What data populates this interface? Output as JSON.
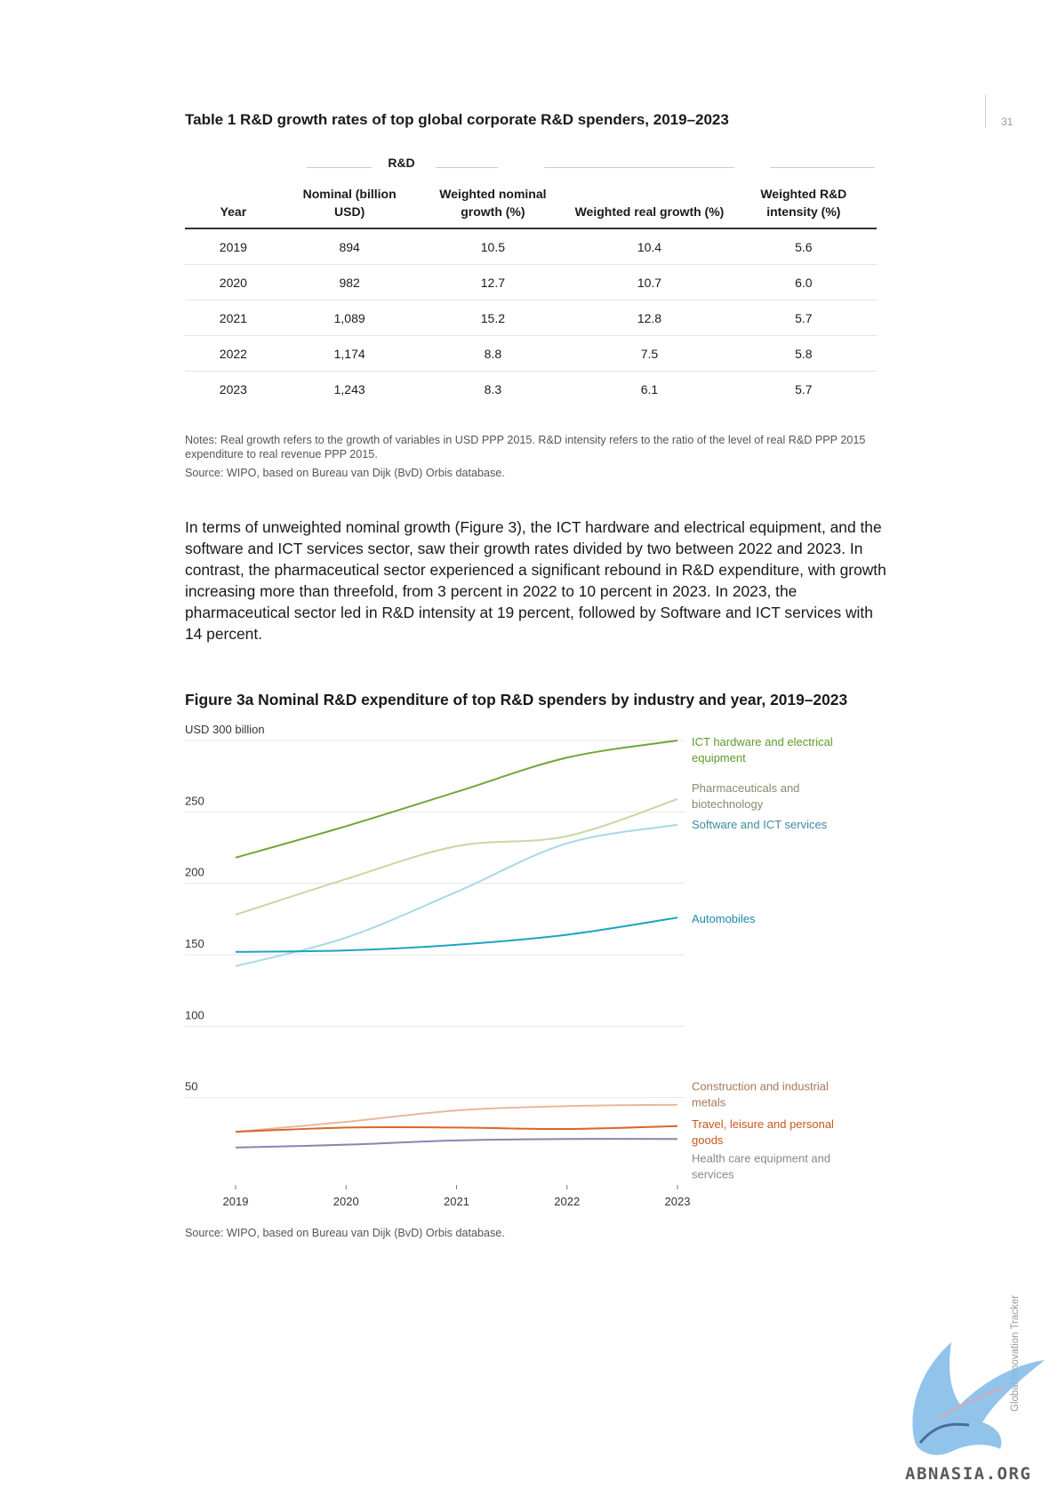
{
  "page": {
    "number": "31",
    "side_label": "Global Innovation Tracker"
  },
  "table": {
    "title": "Table 1 R&D growth rates of top global corporate R&D spenders, 2019–2023",
    "group_header": "R&D",
    "columns": [
      "Year",
      "Nominal (billion USD)",
      "Weighted nominal growth (%)",
      "Weighted real growth (%)",
      "Weighted R&D intensity (%)"
    ],
    "rows": [
      [
        "2019",
        "894",
        "10.5",
        "10.4",
        "5.6"
      ],
      [
        "2020",
        "982",
        "12.7",
        "10.7",
        "6.0"
      ],
      [
        "2021",
        "1,089",
        "15.2",
        "12.8",
        "5.7"
      ],
      [
        "2022",
        "1,174",
        "8.8",
        "7.5",
        "5.8"
      ],
      [
        "2023",
        "1,243",
        "8.3",
        "6.1",
        "5.7"
      ]
    ],
    "notes": "Notes: Real growth refers to the growth of variables in USD PPP 2015. R&D intensity refers to the ratio of the level of real R&D PPP 2015 expenditure to real revenue PPP 2015.",
    "source": "Source: WIPO, based on Bureau van Dijk (BvD) Orbis database."
  },
  "body_text": "In terms of unweighted nominal growth (Figure 3), the ICT hardware and electrical equipment, and the software and ICT services sector, saw their growth rates divided by two between 2022 and 2023. In contrast, the pharmaceutical sector experienced a significant rebound in R&D expenditure, with growth increasing more than threefold, from 3 percent in 2022 to 10 percent in 2023. In 2023, the pharmaceutical sector led in R&D intensity at 19 percent, followed by Software and ICT services with 14 percent.",
  "figure": {
    "title": "Figure 3a Nominal R&D expenditure  of top R&D spenders by industry and year, 2019–2023",
    "source": "Source: WIPO, based on Bureau van Dijk (BvD) Orbis database."
  },
  "chart_data": {
    "type": "line",
    "title": "Figure 3a Nominal R&D expenditure  of top R&D spenders by industry and year, 2019–2023",
    "xlabel": "",
    "ylabel": "USD 300 billion",
    "x": [
      "2019",
      "2020",
      "2021",
      "2022",
      "2023"
    ],
    "ylim": [
      0,
      300
    ],
    "yticks": [
      50,
      100,
      150,
      200,
      250
    ],
    "ytick_labels": [
      "50",
      "100",
      "150",
      "200",
      "250"
    ],
    "grid": true,
    "legend": "direct labels at right end of lines",
    "series": [
      {
        "name": "ICT hardware and electrical equipment",
        "values": [
          218,
          240,
          264,
          288,
          300
        ],
        "color": "#6ea832"
      },
      {
        "name": "Pharmaceuticals and biotechnology",
        "values": [
          178,
          203,
          226,
          233,
          259
        ],
        "color": "#c8d6a4"
      },
      {
        "name": "Software and ICT services",
        "values": [
          142,
          162,
          194,
          228,
          241
        ],
        "color": "#a8d8e8"
      },
      {
        "name": "Automobiles",
        "values": [
          152,
          153,
          157,
          164,
          176
        ],
        "color": "#1aa5c0"
      },
      {
        "name": "Construction and industrial metals",
        "values": [
          26,
          33,
          41,
          44,
          45
        ],
        "color": "#e8b899"
      },
      {
        "name": "Travel, leisure and personal goods",
        "values": [
          26,
          29,
          29,
          28,
          30
        ],
        "color": "#d8662a"
      },
      {
        "name": "Health care equipment and services",
        "values": [
          15,
          17,
          20,
          21,
          21
        ],
        "color": "#8b84ad"
      }
    ]
  }
}
